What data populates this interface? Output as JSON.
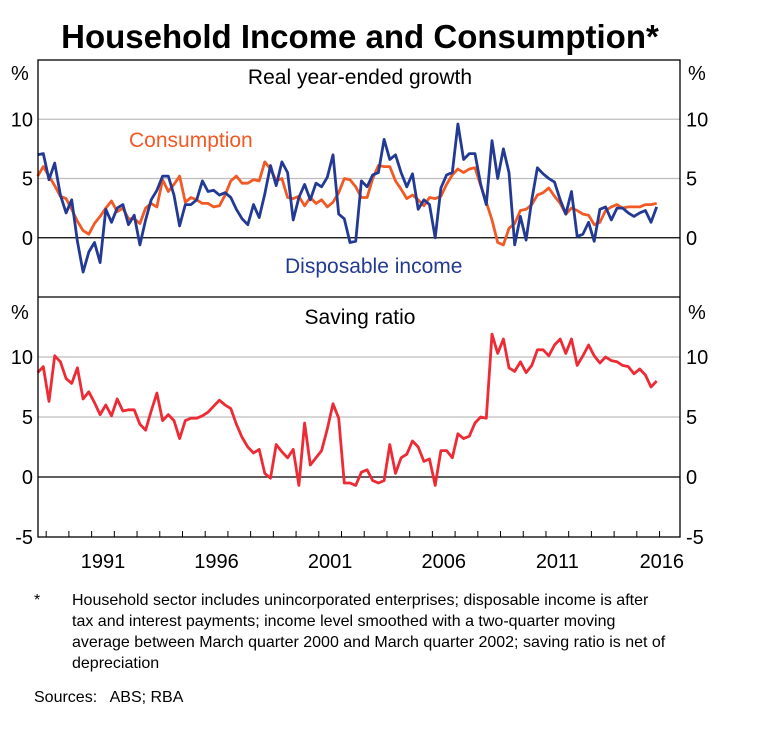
{
  "chart_data": {
    "title": "Household Income and Consumption*",
    "type": "line",
    "frequency": "quarterly",
    "x_start": "1988-Q3",
    "x_ticks": [
      "1991",
      "1996",
      "2001",
      "2006",
      "2011",
      "2016"
    ],
    "panels": [
      {
        "title": "Real year-ended growth",
        "unit": "%",
        "ylim": [
          -5,
          15
        ],
        "y_ticks": [
          10,
          5,
          0
        ],
        "grid": true,
        "series": [
          {
            "name": "Consumption",
            "color": "#f15a24",
            "values": [
              5.2,
              6.0,
              5.2,
              4.4,
              3.5,
              3.3,
              2.4,
              1.4,
              0.6,
              0.3,
              1.2,
              1.8,
              2.5,
              3.1,
              2.2,
              2.5,
              1.6,
              1.6,
              1.2,
              2.5,
              2.9,
              2.6,
              4.9,
              3.9,
              4.5,
              5.2,
              3.0,
              3.4,
              3.2,
              2.9,
              2.9,
              2.6,
              2.7,
              3.6,
              4.8,
              5.2,
              4.6,
              4.6,
              4.9,
              4.8,
              6.4,
              5.8,
              4.8,
              5.0,
              3.4,
              3.3,
              3.5,
              2.7,
              3.4,
              2.9,
              3.2,
              2.6,
              3.0,
              3.8,
              5.0,
              4.9,
              4.3,
              3.4,
              3.4,
              5.0,
              6.1,
              6.0,
              6.0,
              4.8,
              4.1,
              3.3,
              3.6,
              3.2,
              2.7,
              3.4,
              3.3,
              3.5,
              4.5,
              5.3,
              5.8,
              5.5,
              5.8,
              5.9,
              4.4,
              3.0,
              1.5,
              -0.4,
              -0.6,
              0.8,
              1.2,
              2.3,
              2.4,
              2.8,
              3.6,
              3.8,
              4.2,
              3.5,
              2.9,
              2.0,
              2.5,
              2.3,
              2.0,
              1.9,
              1.1,
              1.3,
              2.3,
              2.6,
              2.8,
              2.5,
              2.6,
              2.6,
              2.6,
              2.8,
              2.8,
              2.9
            ]
          },
          {
            "name": "Disposable income",
            "color": "#233a95",
            "values": [
              7.0,
              7.1,
              4.9,
              6.3,
              3.6,
              2.1,
              3.2,
              -0.3,
              -2.9,
              -1.2,
              -0.4,
              -2.1,
              2.4,
              1.3,
              2.5,
              2.8,
              1.1,
              1.9,
              -0.6,
              1.5,
              3.2,
              4.0,
              5.2,
              5.2,
              3.6,
              1.0,
              2.8,
              2.8,
              3.2,
              4.8,
              3.9,
              4.0,
              3.6,
              3.8,
              3.4,
              2.4,
              1.6,
              1.1,
              2.8,
              1.7,
              3.7,
              6.1,
              4.4,
              6.4,
              5.5,
              1.5,
              3.4,
              4.5,
              3.2,
              4.6,
              4.3,
              5.1,
              7.0,
              2.0,
              1.6,
              -0.4,
              -0.3,
              4.8,
              4.3,
              5.3,
              5.5,
              8.3,
              6.6,
              7.0,
              5.5,
              4.3,
              5.4,
              2.4,
              3.2,
              2.8,
              0.0,
              4.2,
              5.3,
              5.5,
              9.6,
              6.6,
              7.1,
              7.1,
              4.5,
              2.8,
              8.2,
              5.0,
              7.5,
              5.5,
              -0.6,
              1.8,
              -0.2,
              3.2,
              5.9,
              5.4,
              5.0,
              4.7,
              3.2,
              2.0,
              3.9,
              0.1,
              0.3,
              1.3,
              -0.3,
              2.4,
              2.6,
              1.5,
              2.5,
              2.5,
              2.1,
              1.8,
              2.1,
              2.3,
              1.3,
              2.6
            ]
          }
        ]
      },
      {
        "title": "Saving ratio",
        "unit": "%",
        "ylim": [
          -5,
          15
        ],
        "y_ticks": [
          10,
          5,
          0,
          -5
        ],
        "grid": true,
        "series": [
          {
            "color": "#ee2a35",
            "values": [
              8.7,
              9.2,
              6.3,
              10.1,
              9.6,
              8.2,
              7.8,
              9.1,
              6.5,
              7.1,
              6.2,
              5.2,
              6.0,
              5.1,
              6.5,
              5.5,
              5.6,
              5.6,
              4.4,
              3.9,
              5.5,
              7.0,
              4.7,
              5.2,
              4.7,
              3.2,
              4.7,
              4.9,
              4.9,
              5.1,
              5.4,
              5.9,
              6.4,
              6.0,
              5.7,
              4.4,
              3.3,
              2.5,
              2.0,
              2.3,
              0.3,
              -0.1,
              2.7,
              2.1,
              1.6,
              2.3,
              -0.7,
              4.5,
              1.0,
              1.6,
              2.2,
              4.0,
              6.1,
              4.9,
              -0.5,
              -0.5,
              -0.7,
              0.4,
              0.6,
              -0.3,
              -0.5,
              -0.3,
              2.7,
              0.3,
              1.6,
              1.9,
              3.0,
              2.5,
              1.3,
              1.5,
              -0.7,
              2.2,
              2.2,
              1.6,
              3.6,
              3.2,
              3.4,
              4.5,
              5.0,
              4.9,
              11.9,
              10.3,
              11.5,
              9.1,
              8.8,
              9.6,
              8.7,
              9.3,
              10.6,
              10.6,
              10.1,
              11.0,
              11.5,
              10.3,
              11.5,
              9.3,
              10.1,
              11.0,
              10.1,
              9.5,
              10.0,
              9.7,
              9.6,
              9.3,
              9.2,
              8.6,
              9.0,
              8.5,
              7.5,
              8.0
            ]
          }
        ]
      }
    ]
  },
  "footnote": {
    "marker": "*",
    "text": "Household sector includes unincorporated enterprises; disposable income is after tax and interest payments; income level smoothed with a two-quarter moving average between March quarter 2000 and March quarter 2002; saving ratio is net of depreciation"
  },
  "sources": "Sources:   ABS; RBA"
}
